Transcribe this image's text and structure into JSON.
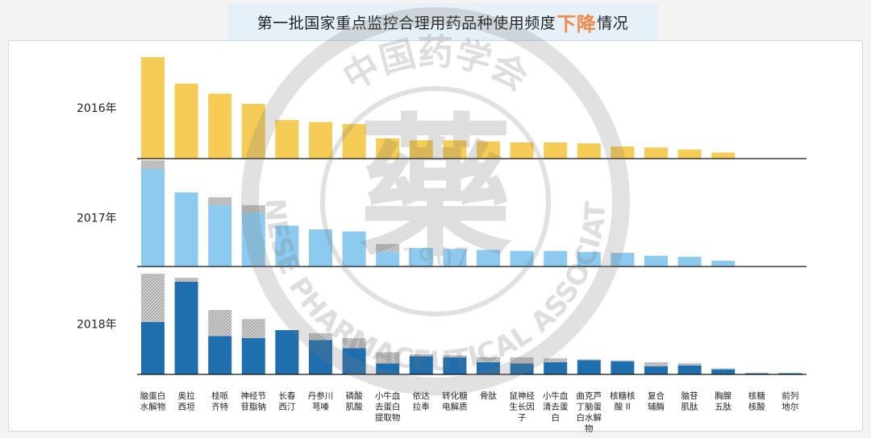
{
  "title": {
    "before": "第一批国家重点监控合理用药品种使用频度",
    "highlight": "下降",
    "after": "情况"
  },
  "watermark": {
    "center_char": "藥",
    "year": "1907",
    "top_arc": "中国药学会",
    "bottom_arc": "CHINESE PHARMACEUTICAL ASSOCIATION"
  },
  "colors": {
    "2016": "#f5cc55",
    "2017": "#8ccbef",
    "2018": "#1f6fae",
    "decline": "#bdbdbd"
  },
  "chart_data": {
    "type": "bar",
    "categories": [
      "脑蛋白水解物",
      "奥拉西坦",
      "桂哌齐特",
      "神经节苷脂钠",
      "长春西汀",
      "丹参川芎嗪",
      "磷酸肌酸",
      "小牛血去蛋白提取物",
      "依达拉奉",
      "转化糖电解质",
      "骨肽",
      "鼠神经生长因子",
      "小牛血清去蛋白",
      "曲克芦丁脑蛋白水解物",
      "核糖核酸Ⅱ",
      "复合辅酶",
      "脑苷肌肽",
      "胸腺五肽",
      "核糖核酸",
      "前列地尔"
    ],
    "category_labels": [
      [
        "脑蛋白",
        "水解物"
      ],
      [
        "奥拉",
        "西坦"
      ],
      [
        "桂哌",
        "齐特"
      ],
      [
        "神经节",
        "苷脂钠"
      ],
      [
        "长春",
        "西汀"
      ],
      [
        "丹参川",
        "芎嗪"
      ],
      [
        "磷酸",
        "肌酸"
      ],
      [
        "小牛血",
        "去蛋白",
        "提取物"
      ],
      [
        "依达",
        "拉奉"
      ],
      [
        "转化糖",
        "电解质"
      ],
      [
        "骨肽"
      ],
      [
        "鼠神经",
        "生长因",
        "子"
      ],
      [
        "小牛血",
        "清去蛋",
        "白"
      ],
      [
        "曲克芦",
        "丁脑蛋",
        "白水解",
        "物"
      ],
      [
        "核糖核",
        "酸 II"
      ],
      [
        "复合",
        "辅酶"
      ],
      [
        "脑苷",
        "肌肽"
      ],
      [
        "胸腺",
        "五肽"
      ],
      [
        "核糖",
        "核酸"
      ],
      [
        "前列",
        "地尔"
      ]
    ],
    "series": [
      {
        "name": "2016年",
        "values": [
          100,
          74,
          64,
          54,
          38,
          36,
          34,
          20,
          18,
          18,
          17,
          16,
          16,
          15,
          12,
          11,
          9,
          6,
          0,
          0
        ]
      },
      {
        "name": "2017年",
        "values": [
          100,
          76,
          63,
          55,
          42,
          38,
          36,
          15,
          19,
          18,
          17,
          16,
          16,
          15,
          14,
          11,
          10,
          6,
          0,
          0
        ]
      },
      {
        "name": "2018年",
        "values": [
          52,
          92,
          38,
          36,
          44,
          34,
          26,
          11,
          18,
          17,
          12,
          11,
          12,
          14,
          13,
          8,
          9,
          5,
          1,
          1
        ]
      }
    ],
    "decline_from_previous_year": [
      [
        0,
        0,
        0,
        0,
        0,
        0,
        0,
        0,
        0,
        0,
        0,
        0,
        0,
        0,
        0,
        0,
        0,
        0,
        0,
        0
      ],
      [
        9,
        0,
        8,
        8,
        0,
        0,
        0,
        8,
        0,
        0,
        0,
        0,
        0,
        0,
        0,
        0,
        0,
        0,
        0,
        0
      ],
      [
        48,
        4,
        26,
        19,
        0,
        7,
        10,
        11,
        2,
        2,
        5,
        6,
        4,
        1,
        1,
        4,
        2,
        1,
        0,
        0
      ]
    ],
    "ylim": [
      0,
      100
    ],
    "legend": "none",
    "grid": false
  }
}
